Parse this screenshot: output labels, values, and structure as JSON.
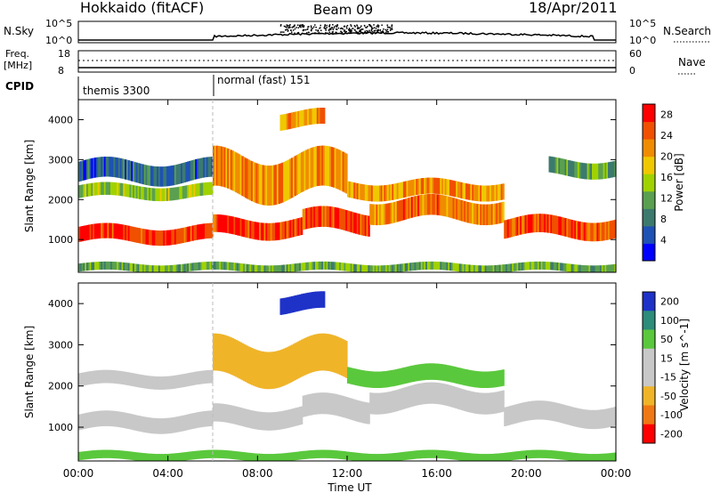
{
  "header": {
    "station": "Hokkaido (fitACF)",
    "beam": "Beam 09",
    "date": "18/Apr/2011"
  },
  "summary_panels": {
    "nsky_label": "N.Sky",
    "nsearch_label": "N.Search",
    "nsky_ticks": [
      "10^5",
      "10^0"
    ],
    "nsearch_ticks": [
      "10^5",
      "10^0"
    ],
    "freq_label_line1": "Freq.",
    "freq_label_line2": "[MHz]",
    "freq_ticks": [
      "18",
      "8"
    ],
    "nave_label": "Nave",
    "nave_ticks": [
      "60",
      "0"
    ],
    "cpid_label": "CPID",
    "cpid_modes": [
      {
        "name": "themis 3300",
        "start_hour": 0
      },
      {
        "name": "normal (fast) 151",
        "start_hour": 6
      }
    ]
  },
  "chart_data": [
    {
      "type": "heatmap",
      "title": "",
      "xlabel": "Time UT",
      "ylabel": "Slant Range [km]",
      "x_ticks": [
        "00:00",
        "04:00",
        "08:00",
        "12:00",
        "16:00",
        "20:00",
        "00:00"
      ],
      "xlim_hours": [
        0,
        24
      ],
      "y_ticks": [
        1000,
        2000,
        3000,
        4000
      ],
      "ylim": [
        180,
        4500
      ],
      "colorbar": {
        "label": "Power [dB]",
        "ticks": [
          4,
          8,
          12,
          16,
          20,
          24,
          28
        ],
        "range": [
          0,
          30
        ],
        "colors": [
          "#0000ff",
          "#1e52b4",
          "#3c7a6e",
          "#5aa050",
          "#a0d200",
          "#f0c800",
          "#f08c00",
          "#f05000",
          "#ff0000"
        ]
      },
      "bands": [
        {
          "start": 0,
          "end": 6,
          "center": 1130,
          "half_width": 190,
          "value": 27
        },
        {
          "start": 0,
          "end": 6,
          "center": 2200,
          "half_width": 160,
          "value": 14
        },
        {
          "start": 0,
          "end": 6,
          "center": 2700,
          "half_width": 250,
          "value": 7
        },
        {
          "start": 6,
          "end": 10,
          "center": 1300,
          "half_width": 220,
          "value": 26
        },
        {
          "start": 10,
          "end": 13,
          "center": 1450,
          "half_width": 260,
          "value": 25
        },
        {
          "start": 13,
          "end": 19,
          "center": 1750,
          "half_width": 260,
          "value": 23
        },
        {
          "start": 19,
          "end": 24,
          "center": 1300,
          "half_width": 230,
          "value": 25
        },
        {
          "start": 6,
          "end": 12,
          "center": 2600,
          "half_width": 500,
          "value": 21
        },
        {
          "start": 12,
          "end": 19,
          "center": 2250,
          "half_width": 200,
          "value": 21
        },
        {
          "start": 9,
          "end": 11,
          "center": 4000,
          "half_width": 200,
          "value": 22
        },
        {
          "start": 21,
          "end": 24,
          "center": 2800,
          "half_width": 200,
          "value": 11
        },
        {
          "start": 0,
          "end": 24,
          "center": 300,
          "half_width": 100,
          "value": 12
        }
      ]
    },
    {
      "type": "heatmap",
      "title": "",
      "xlabel": "Time UT",
      "ylabel": "Slant Range [km]",
      "x_ticks": [
        "00:00",
        "04:00",
        "08:00",
        "12:00",
        "16:00",
        "20:00",
        "00:00"
      ],
      "xlim_hours": [
        0,
        24
      ],
      "y_ticks": [
        1000,
        2000,
        3000,
        4000
      ],
      "ylim": [
        180,
        4500
      ],
      "colorbar": {
        "label": "Velocity [m s^-1]",
        "ticks": [
          200,
          100,
          50,
          15,
          -15,
          -50,
          -100,
          -200
        ],
        "colors": [
          "#1e32c8",
          "#2d8c7a",
          "#5ac83c",
          "#c8c8c8",
          "#c8c8c8",
          "#f0b428",
          "#f07814",
          "#ff0000"
        ]
      },
      "bands": [
        {
          "start": 0,
          "end": 6,
          "center": 1120,
          "half_width": 190,
          "value": 0
        },
        {
          "start": 0,
          "end": 6,
          "center": 2150,
          "half_width": 160,
          "value": 0
        },
        {
          "start": 6,
          "end": 10,
          "center": 1250,
          "half_width": 220,
          "value": 0
        },
        {
          "start": 10,
          "end": 13,
          "center": 1450,
          "half_width": 260,
          "value": 5
        },
        {
          "start": 13,
          "end": 19,
          "center": 1700,
          "half_width": 260,
          "value": 0
        },
        {
          "start": 19,
          "end": 24,
          "center": 1300,
          "half_width": 230,
          "value": 0
        },
        {
          "start": 6,
          "end": 12,
          "center": 2600,
          "half_width": 450,
          "value": -40
        },
        {
          "start": 12,
          "end": 19,
          "center": 2250,
          "half_width": 200,
          "value": 40
        },
        {
          "start": 9,
          "end": 11,
          "center": 4000,
          "half_width": 200,
          "value": 200
        },
        {
          "start": 0,
          "end": 24,
          "center": 300,
          "half_width": 100,
          "value": 60
        }
      ]
    }
  ]
}
